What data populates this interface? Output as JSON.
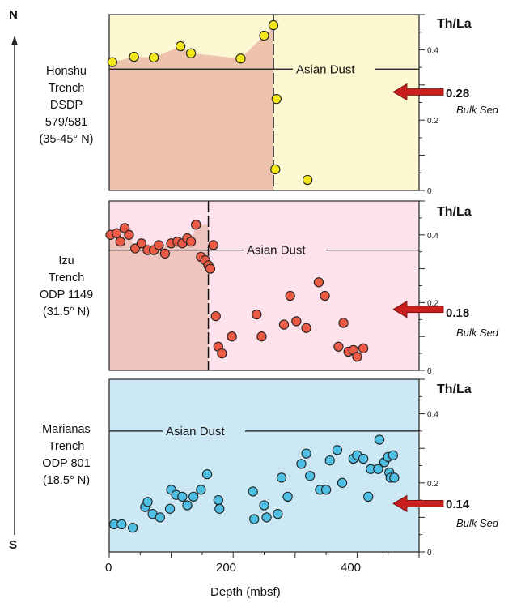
{
  "figure": {
    "north_label": "N",
    "south_label": "S",
    "xlabel": "Depth (mbsf)",
    "x_ticks": [
      "0",
      "200",
      "400"
    ],
    "y_ticks": [
      "0.4",
      "0.2",
      "0"
    ]
  },
  "panels": [
    {
      "site_lines": [
        "Honshu",
        "Trench",
        "DSDP",
        "579/581",
        "(35-45° N)"
      ],
      "ratio_label": "Th/La",
      "dust_label": "Asian Dust",
      "bulk_value": "0.28",
      "bulk_label": "Bulk Sed"
    },
    {
      "site_lines": [
        "Izu",
        "Trench",
        "ODP 1149",
        "(31.5° N)"
      ],
      "ratio_label": "Th/La",
      "dust_label": "Asian Dust",
      "bulk_value": "0.18",
      "bulk_label": "Bulk Sed"
    },
    {
      "site_lines": [
        "Marianas",
        "Trench",
        "ODP 801",
        "(18.5° N)"
      ],
      "ratio_label": "Th/La",
      "dust_label": "Asian Dust",
      "bulk_value": "0.14",
      "bulk_label": "Bulk Sed"
    }
  ],
  "chart_data": [
    {
      "type": "scatter",
      "panel": "Honshu Trench DSDP 579/581 (35-45° N)",
      "xlabel": "Depth (mbsf)",
      "ylabel": "Th/La",
      "xlim": [
        0,
        500
      ],
      "ylim": [
        0,
        0.5
      ],
      "asian_dust": 0.345,
      "bulk_sed": 0.28,
      "dashed_depth": 265,
      "shaded_to_depth": 265,
      "bg_color": "#fdf8d2",
      "shade_color": "#edc3ad",
      "point_color": "#f3e61a",
      "points": [
        [
          5,
          0.365
        ],
        [
          40,
          0.38
        ],
        [
          72,
          0.378
        ],
        [
          115,
          0.41
        ],
        [
          132,
          0.39
        ],
        [
          212,
          0.375
        ],
        [
          250,
          0.44
        ],
        [
          265,
          0.47
        ],
        [
          270,
          0.26
        ],
        [
          268,
          0.06
        ],
        [
          320,
          0.03
        ]
      ]
    },
    {
      "type": "scatter",
      "panel": "Izu Trench ODP 1149 (31.5° N)",
      "xlabel": "Depth (mbsf)",
      "ylabel": "Th/La",
      "xlim": [
        0,
        500
      ],
      "ylim": [
        0,
        0.5
      ],
      "asian_dust": 0.355,
      "bulk_sed": 0.18,
      "dashed_depth": 160,
      "shaded_to_depth": 160,
      "bg_color": "#fde2ec",
      "shade_color": "#efc4bd",
      "point_color": "#ea5a44",
      "points": [
        [
          2,
          0.4
        ],
        [
          12,
          0.405
        ],
        [
          18,
          0.38
        ],
        [
          25,
          0.42
        ],
        [
          32,
          0.4
        ],
        [
          42,
          0.36
        ],
        [
          52,
          0.375
        ],
        [
          62,
          0.355
        ],
        [
          72,
          0.355
        ],
        [
          80,
          0.37
        ],
        [
          90,
          0.345
        ],
        [
          100,
          0.375
        ],
        [
          110,
          0.38
        ],
        [
          118,
          0.375
        ],
        [
          126,
          0.39
        ],
        [
          132,
          0.38
        ],
        [
          140,
          0.43
        ],
        [
          148,
          0.335
        ],
        [
          155,
          0.325
        ],
        [
          160,
          0.31
        ],
        [
          163,
          0.3
        ],
        [
          168,
          0.37
        ],
        [
          172,
          0.16
        ],
        [
          176,
          0.07
        ],
        [
          182,
          0.05
        ],
        [
          198,
          0.1
        ],
        [
          238,
          0.165
        ],
        [
          246,
          0.1
        ],
        [
          282,
          0.135
        ],
        [
          292,
          0.22
        ],
        [
          302,
          0.145
        ],
        [
          318,
          0.125
        ],
        [
          338,
          0.26
        ],
        [
          348,
          0.22
        ],
        [
          370,
          0.07
        ],
        [
          378,
          0.14
        ],
        [
          386,
          0.055
        ],
        [
          394,
          0.06
        ],
        [
          400,
          0.04
        ],
        [
          410,
          0.065
        ]
      ]
    },
    {
      "type": "scatter",
      "panel": "Marianas Trench ODP 801 (18.5° N)",
      "xlabel": "Depth (mbsf)",
      "ylabel": "Th/La",
      "xlim": [
        0,
        500
      ],
      "ylim": [
        0,
        0.5
      ],
      "asian_dust": 0.35,
      "bulk_sed": 0.14,
      "dashed_depth": null,
      "shaded_to_depth": null,
      "bg_color": "#cde8f5",
      "shade_color": null,
      "point_color": "#4ebfe2",
      "points": [
        [
          8,
          0.08
        ],
        [
          20,
          0.08
        ],
        [
          38,
          0.07
        ],
        [
          58,
          0.13
        ],
        [
          62,
          0.145
        ],
        [
          70,
          0.11
        ],
        [
          82,
          0.1
        ],
        [
          98,
          0.125
        ],
        [
          100,
          0.18
        ],
        [
          108,
          0.165
        ],
        [
          118,
          0.16
        ],
        [
          126,
          0.135
        ],
        [
          136,
          0.16
        ],
        [
          148,
          0.18
        ],
        [
          158,
          0.225
        ],
        [
          176,
          0.15
        ],
        [
          178,
          0.125
        ],
        [
          232,
          0.175
        ],
        [
          234,
          0.095
        ],
        [
          250,
          0.135
        ],
        [
          254,
          0.1
        ],
        [
          272,
          0.11
        ],
        [
          278,
          0.215
        ],
        [
          288,
          0.16
        ],
        [
          310,
          0.255
        ],
        [
          318,
          0.285
        ],
        [
          324,
          0.22
        ],
        [
          340,
          0.18
        ],
        [
          350,
          0.18
        ],
        [
          356,
          0.265
        ],
        [
          368,
          0.295
        ],
        [
          376,
          0.2
        ],
        [
          394,
          0.27
        ],
        [
          400,
          0.28
        ],
        [
          410,
          0.27
        ],
        [
          418,
          0.16
        ],
        [
          422,
          0.24
        ],
        [
          434,
          0.24
        ],
        [
          436,
          0.325
        ],
        [
          444,
          0.26
        ],
        [
          450,
          0.275
        ],
        [
          452,
          0.23
        ],
        [
          454,
          0.215
        ],
        [
          458,
          0.28
        ],
        [
          460,
          0.215
        ]
      ]
    }
  ]
}
